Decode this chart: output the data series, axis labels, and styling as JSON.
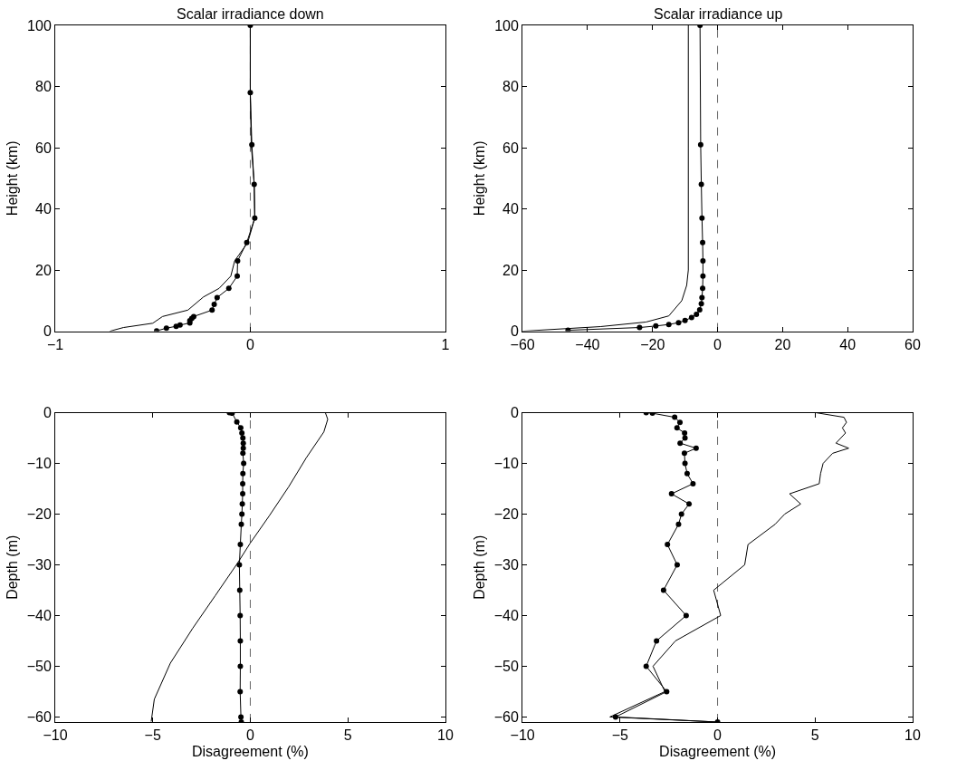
{
  "chart_data": [
    {
      "type": "line",
      "title": "Scalar irradiance down",
      "ylabel": "Height (km)",
      "xlim": [
        -1,
        1
      ],
      "xticks": [
        -1,
        0,
        1
      ],
      "ylim": [
        0,
        100
      ],
      "yticks": [
        0,
        20,
        40,
        60,
        80,
        100
      ],
      "ref_lines": [
        {
          "axis": "x",
          "value": 0,
          "color": "#666666",
          "line_style": "dashed"
        }
      ],
      "series": [
        {
          "color": "#000000",
          "marker": "none",
          "x": [
            -0.72,
            -0.65,
            -0.5,
            -0.45,
            -0.32,
            -0.24,
            -0.16,
            -0.1,
            -0.08,
            -0.013,
            0.023,
            0.02,
            0.005,
            0,
            0
          ],
          "values": [
            0,
            1.2,
            2.6,
            4.8,
            6.9,
            11.2,
            14,
            18,
            23,
            29,
            37,
            48,
            61,
            78,
            100
          ]
        },
        {
          "color": "#000000",
          "marker": "circle",
          "x": [
            -0.48,
            -0.43,
            -0.38,
            -0.36,
            -0.31,
            -0.31,
            -0.3,
            -0.29,
            -0.196,
            -0.185,
            -0.17,
            -0.11,
            -0.067,
            -0.065,
            -0.018,
            0.023,
            0.02,
            0.008,
            0,
            0
          ],
          "values": [
            0.1,
            1,
            1.6,
            2,
            2.7,
            3.4,
            4.2,
            4.8,
            6.9,
            8.8,
            11,
            14,
            18,
            23,
            29,
            37,
            48,
            61,
            78,
            100
          ]
        }
      ]
    },
    {
      "type": "line",
      "title": "Scalar irradiance up",
      "ylabel": "Height (km)",
      "xlim": [
        -60,
        60
      ],
      "xticks": [
        -60,
        -40,
        -20,
        0,
        20,
        40,
        60
      ],
      "ylim": [
        0,
        100
      ],
      "yticks": [
        0,
        20,
        40,
        60,
        80,
        100
      ],
      "ref_lines": [
        {
          "axis": "x",
          "value": 0,
          "color": "#666666",
          "line_style": "dashed"
        }
      ],
      "series": [
        {
          "color": "#000000",
          "marker": "none",
          "x": [
            -60,
            -36,
            -22,
            -15,
            -11,
            -9.5,
            -9,
            -9,
            -9
          ],
          "values": [
            0,
            1.5,
            3,
            5,
            10,
            15,
            20,
            60,
            100
          ]
        },
        {
          "color": "#000000",
          "marker": "circle",
          "x": [
            -46,
            -24,
            -19,
            -15,
            -12,
            -10,
            -8,
            -6.5,
            -5.5,
            -5,
            -4.8,
            -4.6,
            -4.5,
            -4.5,
            -4.6,
            -4.8,
            -5,
            -5.2,
            -5.4
          ],
          "values": [
            0.3,
            1.2,
            1.7,
            2.2,
            2.8,
            3.5,
            4.5,
            5.5,
            7,
            9,
            11,
            14,
            18,
            23,
            29,
            37,
            48,
            61,
            100
          ]
        }
      ]
    },
    {
      "type": "line",
      "xlabel": "Disagreement (%)",
      "ylabel": "Depth (m)",
      "xlim": [
        -10,
        10
      ],
      "xticks": [
        -10,
        -5,
        0,
        5,
        10
      ],
      "ylim": [
        -61,
        0
      ],
      "yticks": [
        0,
        -10,
        -20,
        -30,
        -40,
        -50,
        -60
      ],
      "ref_lines": [
        {
          "axis": "x",
          "value": 0,
          "color": "#666666",
          "line_style": "dashed"
        }
      ],
      "series": [
        {
          "color": "#000000",
          "marker": "none",
          "x": [
            3.85,
            3.97,
            3.77,
            2.87,
            1.97,
            0.98,
            0,
            -0.66,
            -1.8,
            -2.95,
            -4.1,
            -4.92,
            -5.08
          ],
          "values": [
            0,
            -1.3,
            -3.8,
            -8.9,
            -14.6,
            -20.3,
            -25.7,
            -29.7,
            -36.1,
            -42.5,
            -49.4,
            -56.5,
            -60.9
          ]
        },
        {
          "color": "#000000",
          "marker": "circle",
          "x": [
            -1.07,
            -0.93,
            -0.69,
            -0.49,
            -0.43,
            -0.38,
            -0.36,
            -0.36,
            -0.38,
            -0.34,
            -0.38,
            -0.39,
            -0.39,
            -0.41,
            -0.43,
            -0.46,
            -0.51,
            -0.56,
            -0.54,
            -0.52,
            -0.51,
            -0.51,
            -0.52,
            -0.48,
            -0.46
          ],
          "values": [
            0,
            -0.1,
            -1.8,
            -3,
            -4,
            -5,
            -6,
            -7,
            -8,
            -10,
            -12,
            -14,
            -16,
            -18,
            -20,
            -22,
            -26,
            -30,
            -35,
            -40,
            -45,
            -50,
            -55,
            -60,
            -61
          ]
        }
      ]
    },
    {
      "type": "line",
      "xlabel": "Disagreement (%)",
      "ylabel": "Depth (m)",
      "xlim": [
        -10,
        10
      ],
      "xticks": [
        -10,
        -5,
        0,
        5,
        10
      ],
      "ylim": [
        -61,
        0
      ],
      "yticks": [
        0,
        -10,
        -20,
        -30,
        -40,
        -50,
        -60
      ],
      "ref_lines": [
        {
          "axis": "x",
          "value": 0,
          "color": "#666666",
          "line_style": "dashed"
        }
      ],
      "series": [
        {
          "color": "#000000",
          "marker": "none",
          "x": [
            5.05,
            6.48,
            6.61,
            6.4,
            6.56,
            6.07,
            6.72,
            5.9,
            5.41,
            5.28,
            5.21,
            3.69,
            4.26,
            3.44,
            2.95,
            1.56,
            1.39,
            -0.2,
            0.16,
            -2.16,
            -3.31,
            -2.7,
            -5.52,
            0
          ],
          "values": [
            0,
            -0.9,
            -1.9,
            -3,
            -4,
            -6,
            -7,
            -8,
            -10,
            -12,
            -14,
            -16,
            -18,
            -20,
            -22,
            -26,
            -30,
            -35,
            -40,
            -45,
            -50,
            -55,
            -60,
            -61
          ]
        },
        {
          "color": "#000000",
          "marker": "circle",
          "x": [
            -3.66,
            -3.34,
            -2.2,
            -1.93,
            -2.08,
            -1.69,
            -1.67,
            -1.92,
            -1.1,
            -1.7,
            -1.67,
            -1.56,
            -1.26,
            -2.36,
            -1.46,
            -1.85,
            -2.0,
            -2.57,
            -2.07,
            -2.77,
            -1.61,
            -3.13,
            -3.66,
            -2.61,
            -5.23,
            0
          ],
          "values": [
            0,
            -0.1,
            -0.9,
            -1.9,
            -3,
            -4,
            -5,
            -6,
            -7,
            -8,
            -10,
            -12,
            -14,
            -16,
            -18,
            -20,
            -22,
            -26,
            -30,
            -35,
            -40,
            -45,
            -50,
            -55,
            -60,
            -61
          ]
        }
      ]
    }
  ]
}
